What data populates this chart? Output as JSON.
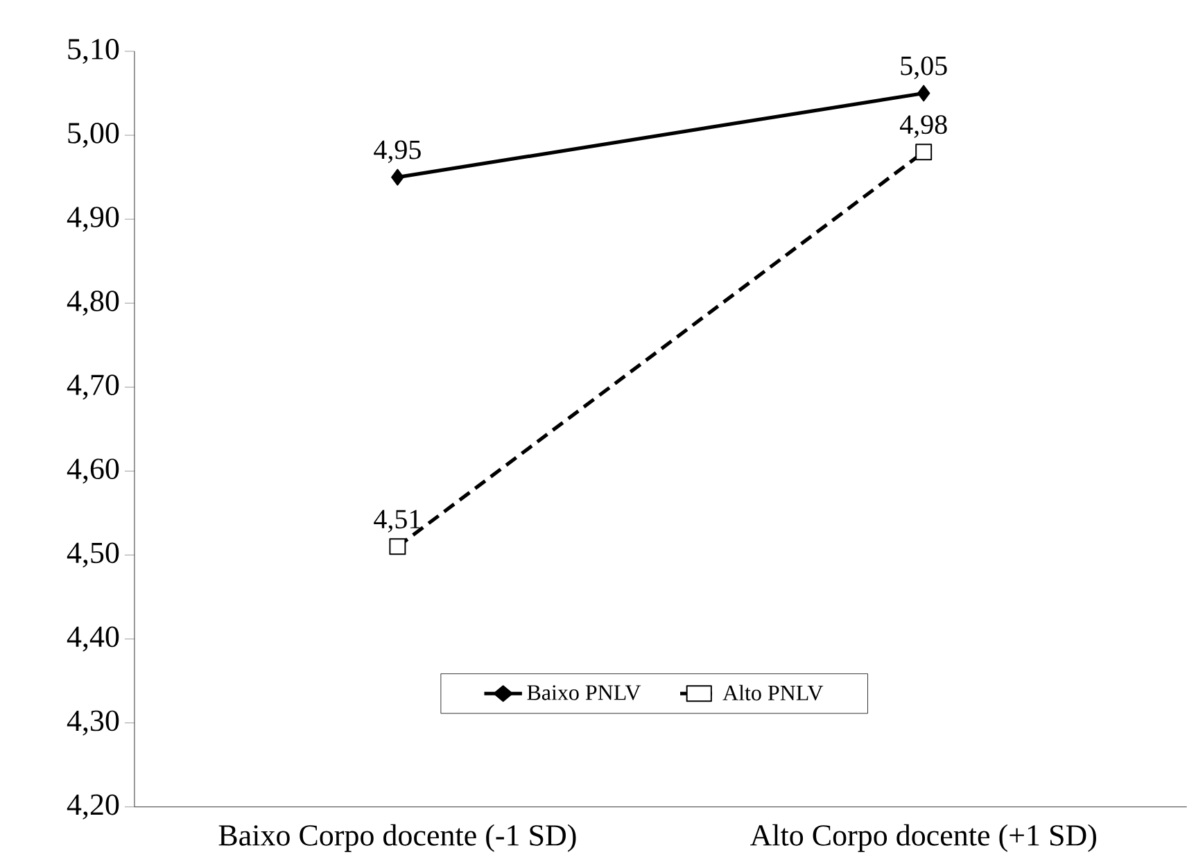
{
  "chart_data": {
    "type": "line",
    "categories": [
      "Baixo Corpo docente (-1 SD)",
      "Alto Corpo docente (+1 SD)"
    ],
    "series": [
      {
        "name": "Baixo PNLV",
        "color": "#000000",
        "values": [
          4.95,
          5.05
        ],
        "value_labels": [
          "4,95",
          "5,05"
        ],
        "marker": "diamond",
        "line_style": "solid"
      },
      {
        "name": "Alto PNLV",
        "color": "#000000",
        "values": [
          4.51,
          4.98
        ],
        "value_labels": [
          "4,51",
          "4,98"
        ],
        "marker": "square",
        "line_style": "dashed"
      }
    ],
    "ylim": [
      4.2,
      5.1
    ],
    "yticks": [
      {
        "value": 4.2,
        "label": "4,20"
      },
      {
        "value": 4.3,
        "label": "4,30"
      },
      {
        "value": 4.4,
        "label": "4,40"
      },
      {
        "value": 4.5,
        "label": "4,50"
      },
      {
        "value": 4.6,
        "label": "4,60"
      },
      {
        "value": 4.7,
        "label": "4,70"
      },
      {
        "value": 4.8,
        "label": "4,80"
      },
      {
        "value": 4.9,
        "label": "4,90"
      },
      {
        "value": 5.0,
        "label": "5,00"
      },
      {
        "value": 5.1,
        "label": "5,10"
      }
    ],
    "grid": false,
    "legend": "bottom"
  }
}
